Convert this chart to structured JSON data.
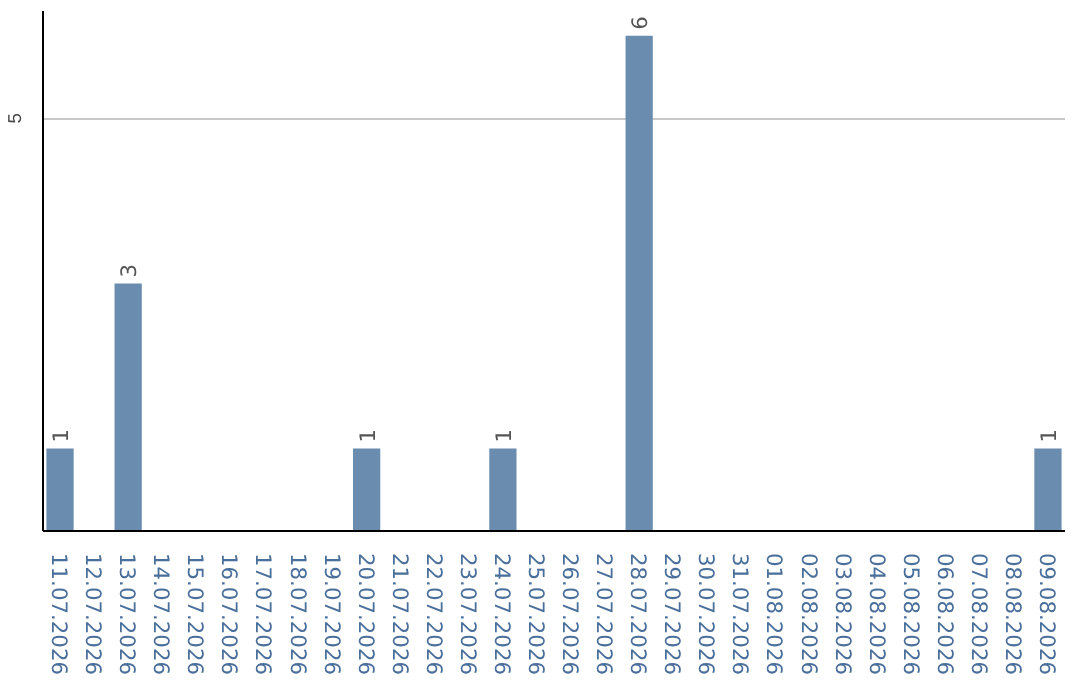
{
  "chart_data": {
    "type": "bar",
    "categories": [
      "11.07.2026",
      "12.07.2026",
      "13.07.2026",
      "14.07.2026",
      "15.07.2026",
      "16.07.2026",
      "17.07.2026",
      "18.07.2026",
      "19.07.2026",
      "20.07.2026",
      "21.07.2026",
      "22.07.2026",
      "23.07.2026",
      "24.07.2026",
      "25.07.2026",
      "26.07.2026",
      "27.07.2026",
      "28.07.2026",
      "29.07.2026",
      "30.07.2026",
      "31.07.2026",
      "01.08.2026",
      "02.08.2026",
      "03.08.2026",
      "04.08.2026",
      "05.08.2026",
      "06.08.2026",
      "07.08.2026",
      "08.08.2026",
      "09.08.2026"
    ],
    "values": [
      1,
      0,
      3,
      0,
      0,
      0,
      0,
      0,
      0,
      1,
      0,
      0,
      0,
      1,
      0,
      0,
      0,
      6,
      0,
      0,
      0,
      0,
      0,
      0,
      0,
      0,
      0,
      0,
      0,
      1
    ],
    "value_labels": [
      "1",
      null,
      "3",
      null,
      null,
      null,
      null,
      null,
      null,
      "1",
      null,
      null,
      null,
      "1",
      null,
      null,
      null,
      "6",
      null,
      null,
      null,
      null,
      null,
      null,
      null,
      null,
      null,
      null,
      null,
      "1"
    ],
    "color": "#6a8caf",
    "ylim": [
      0,
      6.3
    ],
    "yticks": [
      5
    ],
    "grid": "y"
  }
}
